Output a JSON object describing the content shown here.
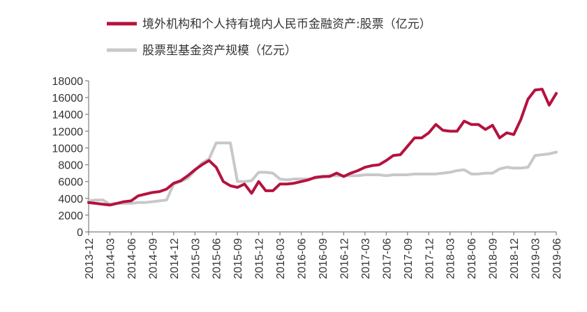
{
  "chart_data": {
    "type": "line",
    "title": "",
    "xlabel": "",
    "ylabel": "",
    "ylim": [
      0,
      18000
    ],
    "yticks": [
      0,
      2000,
      4000,
      6000,
      8000,
      10000,
      12000,
      14000,
      16000,
      18000
    ],
    "grid": false,
    "legend_position": "top-left",
    "x": [
      "2013-12",
      "2014-01",
      "2014-02",
      "2014-03",
      "2014-04",
      "2014-05",
      "2014-06",
      "2014-07",
      "2014-08",
      "2014-09",
      "2014-10",
      "2014-11",
      "2014-12",
      "2015-01",
      "2015-02",
      "2015-03",
      "2015-04",
      "2015-05",
      "2015-06",
      "2015-07",
      "2015-08",
      "2015-09",
      "2015-10",
      "2015-11",
      "2015-12",
      "2016-01",
      "2016-02",
      "2016-03",
      "2016-04",
      "2016-05",
      "2016-06",
      "2016-07",
      "2016-08",
      "2016-09",
      "2016-10",
      "2016-11",
      "2016-12",
      "2017-01",
      "2017-02",
      "2017-03",
      "2017-04",
      "2017-05",
      "2017-06",
      "2017-07",
      "2017-08",
      "2017-09",
      "2017-10",
      "2017-11",
      "2017-12",
      "2018-01",
      "2018-02",
      "2018-03",
      "2018-04",
      "2018-05",
      "2018-06",
      "2018-07",
      "2018-08",
      "2018-09",
      "2018-10",
      "2018-11",
      "2018-12",
      "2019-01",
      "2019-02",
      "2019-03",
      "2019-04",
      "2019-05",
      "2019-06"
    ],
    "xticks": [
      "2013-12",
      "2014-03",
      "2014-06",
      "2014-09",
      "2014-12",
      "2015-03",
      "2015-06",
      "2015-09",
      "2015-12",
      "2016-03",
      "2016-06",
      "2016-09",
      "2016-12",
      "2017-03",
      "2017-06",
      "2017-09",
      "2017-12",
      "2018-03",
      "2018-06",
      "2018-09",
      "2018-12",
      "2019-03",
      "2019-06"
    ],
    "series": [
      {
        "name": "境外机构和个人持有境内人民币金融资产:股票（亿元）",
        "color": "#b5123e",
        "values": [
          3500,
          3400,
          3300,
          3200,
          3400,
          3600,
          3700,
          4300,
          4500,
          4700,
          4800,
          5100,
          5800,
          6100,
          6700,
          7400,
          8000,
          8500,
          7700,
          6000,
          5500,
          5300,
          5700,
          4600,
          6000,
          4900,
          4900,
          5700,
          5700,
          5800,
          6000,
          6200,
          6500,
          6600,
          6600,
          7000,
          6600,
          7000,
          7300,
          7700,
          7900,
          8000,
          8500,
          9100,
          9200,
          10200,
          11200,
          11200,
          11800,
          12800,
          12100,
          12000,
          12000,
          13200,
          12800,
          12800,
          12200,
          12700,
          11200,
          11800,
          11600,
          13400,
          15800,
          16900,
          17000,
          15100,
          16500
        ]
      },
      {
        "name": "股票型基金资产规模（亿元）",
        "color": "#c8c8c8",
        "values": [
          3700,
          3800,
          3800,
          3300,
          3400,
          3400,
          3400,
          3500,
          3500,
          3600,
          3700,
          3800,
          5700,
          6000,
          6400,
          7300,
          8200,
          8700,
          10600,
          10600,
          10600,
          6000,
          6000,
          6100,
          7100,
          7100,
          7000,
          6300,
          6200,
          6300,
          6300,
          6300,
          6400,
          6500,
          6700,
          6700,
          6700,
          6700,
          6700,
          6800,
          6800,
          6800,
          6700,
          6800,
          6800,
          6800,
          6900,
          6900,
          6900,
          6900,
          7000,
          7100,
          7300,
          7400,
          6900,
          6900,
          7000,
          7000,
          7500,
          7700,
          7600,
          7600,
          7700,
          9100,
          9200,
          9300,
          9500
        ]
      }
    ]
  }
}
